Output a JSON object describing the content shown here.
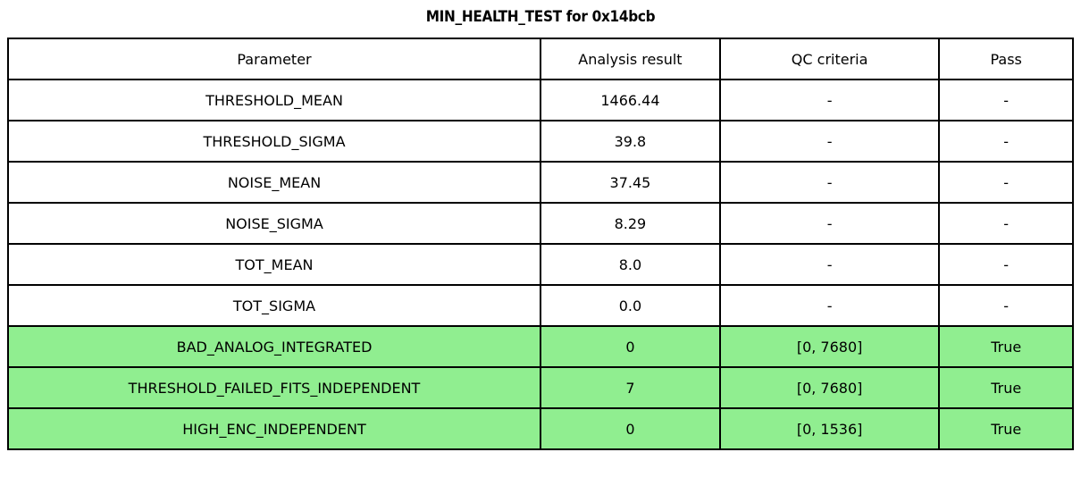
{
  "title": "MIN_HEALTH_TEST for 0x14bcb",
  "table": {
    "columns": [
      "Parameter",
      "Analysis result",
      "QC criteria",
      "Pass"
    ],
    "rows": [
      {
        "parameter": "THRESHOLD_MEAN",
        "result": "1466.44",
        "qc": "-",
        "pass": "-",
        "highlight": false
      },
      {
        "parameter": "THRESHOLD_SIGMA",
        "result": "39.8",
        "qc": "-",
        "pass": "-",
        "highlight": false
      },
      {
        "parameter": "NOISE_MEAN",
        "result": "37.45",
        "qc": "-",
        "pass": "-",
        "highlight": false
      },
      {
        "parameter": "NOISE_SIGMA",
        "result": "8.29",
        "qc": "-",
        "pass": "-",
        "highlight": false
      },
      {
        "parameter": "TOT_MEAN",
        "result": "8.0",
        "qc": "-",
        "pass": "-",
        "highlight": false
      },
      {
        "parameter": "TOT_SIGMA",
        "result": "0.0",
        "qc": "-",
        "pass": "-",
        "highlight": false
      },
      {
        "parameter": "BAD_ANALOG_INTEGRATED",
        "result": "0",
        "qc": "[0, 7680]",
        "pass": "True",
        "highlight": true
      },
      {
        "parameter": "THRESHOLD_FAILED_FITS_INDEPENDENT",
        "result": "7",
        "qc": "[0, 7680]",
        "pass": "True",
        "highlight": true
      },
      {
        "parameter": "HIGH_ENC_INDEPENDENT",
        "result": "0",
        "qc": "[0, 1536]",
        "pass": "True",
        "highlight": true
      }
    ]
  },
  "colors": {
    "pass_green": "#90ee90",
    "border": "#000000",
    "background": "#ffffff"
  }
}
